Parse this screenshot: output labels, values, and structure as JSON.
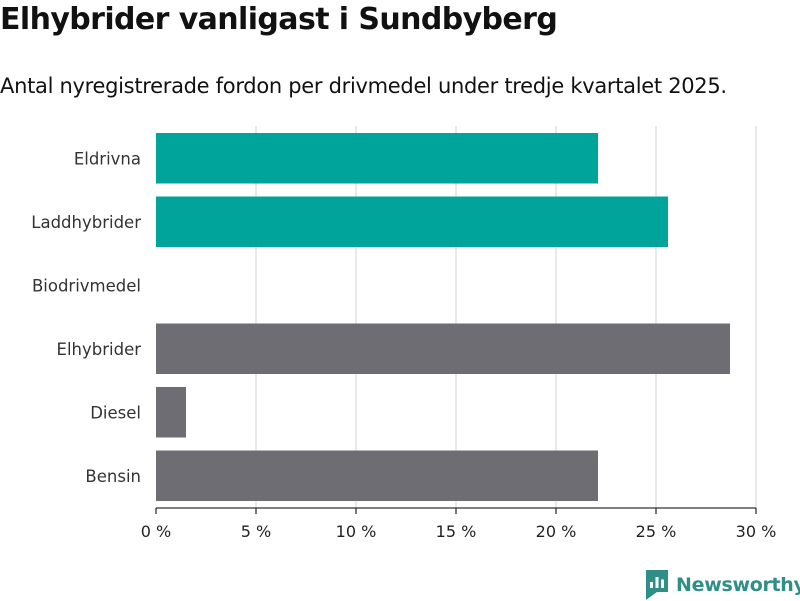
{
  "header": {
    "title": "Elhybrider vanligast i Sundbyberg",
    "subtitle": "Antal nyregistrerade fordon per drivmedel under tredje kvartalet 2025."
  },
  "brand": {
    "name": "Newsworthy",
    "icon": "newsworthy-logo-icon",
    "color": "#2f8f86"
  },
  "chart_data": {
    "type": "bar",
    "orientation": "horizontal",
    "categories": [
      "Eldrivna",
      "Laddhybrider",
      "Biodrivmedel",
      "Elhybrider",
      "Diesel",
      "Bensin"
    ],
    "values": [
      22.1,
      25.6,
      0,
      28.7,
      1.5,
      22.1
    ],
    "colors": [
      "#00a49b",
      "#00a49b",
      "#00a49b",
      "#6e6d73",
      "#6e6d73",
      "#6e6d73"
    ],
    "xlim": [
      0,
      30
    ],
    "xticks": [
      0,
      5,
      10,
      15,
      20,
      25,
      30
    ],
    "xtick_labels": [
      "0 %",
      "5 %",
      "10 %",
      "15 %",
      "20 %",
      "25 %",
      "30 %"
    ],
    "grid": true,
    "xlabel": "",
    "ylabel": ""
  }
}
